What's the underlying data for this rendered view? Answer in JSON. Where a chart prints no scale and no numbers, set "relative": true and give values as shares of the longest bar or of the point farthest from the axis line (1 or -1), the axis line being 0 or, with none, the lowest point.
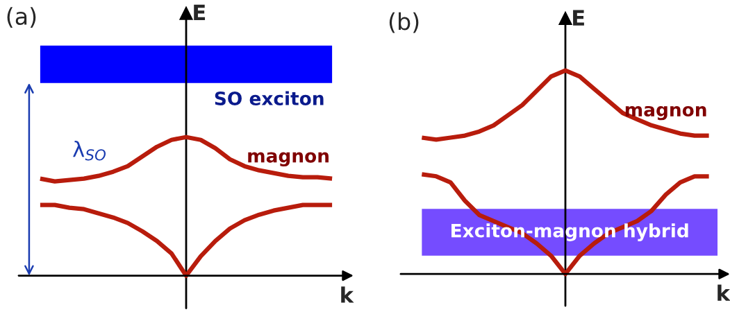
{
  "chart_data": [
    {
      "type": "line",
      "title": "(a)",
      "xlabel": "k",
      "ylabel": "E",
      "relative": true,
      "legend": false,
      "line_style": "solid",
      "marker": "none",
      "categories": [
        null,
        null,
        null,
        null,
        null,
        null,
        null,
        null,
        null,
        null,
        null,
        null,
        null,
        null,
        null,
        null,
        null,
        null,
        null,
        null,
        null
      ],
      "series": [
        {
          "name": "magnon",
          "color": "#b81c0c",
          "values": [
            0.7,
            0.68,
            0.69,
            0.7,
            0.72,
            0.75,
            0.79,
            0.86,
            0.93,
            0.98,
            1,
            0.98,
            0.92,
            0.84,
            0.79,
            0.76,
            0.74,
            0.72,
            0.71,
            0.71,
            0.7
          ]
        },
        {
          "color": "#b81c0c",
          "values": [
            0.51,
            0.51,
            0.49,
            0.48,
            0.45,
            0.42,
            0.38,
            0.32,
            0.25,
            0.16,
            0,
            0.14,
            0.25,
            0.34,
            0.4,
            0.44,
            0.47,
            0.49,
            0.51,
            0.51,
            0.51
          ]
        }
      ],
      "bands": [
        {
          "axis": "y",
          "from": 1.39,
          "to": 1.66,
          "label": "SO exciton",
          "color": "#0000ff"
        }
      ],
      "annotations": [
        "λ$_{SO}$"
      ]
    },
    {
      "type": "line",
      "title": "(b)",
      "xlabel": "k",
      "ylabel": "E",
      "relative": true,
      "legend": false,
      "line_style": "solid",
      "marker": "none",
      "categories": [
        null,
        null,
        null,
        null,
        null,
        null,
        null,
        null,
        null,
        null,
        null,
        null,
        null,
        null,
        null,
        null,
        null,
        null,
        null,
        null,
        null
      ],
      "series": [
        {
          "name": "magnon",
          "color": "#b81c0c",
          "values": [
            0.67,
            0.66,
            0.67,
            0.68,
            0.7,
            0.73,
            0.78,
            0.83,
            0.9,
            0.97,
            1,
            0.97,
            0.91,
            0.85,
            0.79,
            0.76,
            0.73,
            0.71,
            0.69,
            0.68,
            0.68
          ]
        },
        {
          "color": "#b81c0c",
          "values": [
            0.49,
            0.48,
            0.45,
            0.36,
            0.29,
            0.26,
            0.23,
            0.2,
            0.15,
            0.09,
            0,
            0.09,
            0.15,
            0.2,
            0.23,
            0.26,
            0.31,
            0.39,
            0.45,
            0.48,
            0.48
          ]
        }
      ],
      "bands": [
        {
          "axis": "y",
          "from": 0.09,
          "to": 0.32,
          "label": "Exciton-magnon hybrid",
          "color": "#3a00ff"
        }
      ]
    }
  ]
}
